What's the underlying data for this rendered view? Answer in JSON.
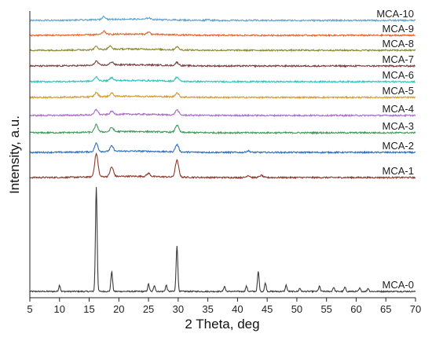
{
  "chart_data": {
    "type": "line",
    "title": "",
    "xlabel": "2 Theta, deg",
    "ylabel": "Intensity, a.u.",
    "xlim": [
      5,
      70
    ],
    "xticks": [
      5,
      10,
      15,
      20,
      25,
      30,
      35,
      40,
      45,
      50,
      55,
      60,
      65,
      70
    ],
    "y_tick_labels": false,
    "grid": false,
    "legend": "none (series labelled inline above each trace)",
    "series": [
      {
        "name": "MCA-0",
        "color": "#3a3a3a",
        "peaks": [
          [
            10.0,
            0.06
          ],
          [
            16.2,
            1.0
          ],
          [
            18.8,
            0.19
          ],
          [
            25.0,
            0.07
          ],
          [
            26.0,
            0.06
          ],
          [
            28.0,
            0.06
          ],
          [
            29.8,
            0.44
          ],
          [
            37.8,
            0.05
          ],
          [
            41.5,
            0.05
          ],
          [
            43.5,
            0.19
          ],
          [
            44.7,
            0.08
          ],
          [
            48.2,
            0.06
          ],
          [
            50.5,
            0.03
          ],
          [
            53.8,
            0.05
          ],
          [
            56.2,
            0.04
          ],
          [
            58.1,
            0.04
          ],
          [
            60.6,
            0.03
          ],
          [
            62.0,
            0.03
          ]
        ]
      },
      {
        "name": "MCA-1",
        "color": "#8b3a2e",
        "peaks": [
          [
            16.2,
            0.22
          ],
          [
            18.8,
            0.09
          ],
          [
            25.0,
            0.03
          ],
          [
            29.8,
            0.16
          ],
          [
            41.8,
            0.02
          ],
          [
            44.0,
            0.02
          ]
        ]
      },
      {
        "name": "MCA-2",
        "color": "#2d6ec2",
        "peaks": [
          [
            16.2,
            0.08
          ],
          [
            18.8,
            0.05
          ],
          [
            29.8,
            0.07
          ],
          [
            41.8,
            0.015
          ]
        ]
      },
      {
        "name": "MCA-3",
        "color": "#3f9a5a",
        "peaks": [
          [
            16.2,
            0.07
          ],
          [
            18.8,
            0.04
          ],
          [
            29.8,
            0.07
          ]
        ]
      },
      {
        "name": "MCA-4",
        "color": "#a96ac9",
        "peaks": [
          [
            16.2,
            0.05
          ],
          [
            18.8,
            0.03
          ],
          [
            29.8,
            0.05
          ]
        ]
      },
      {
        "name": "MCA-5",
        "color": "#d49a2c",
        "peaks": [
          [
            16.2,
            0.04
          ],
          [
            18.8,
            0.03
          ],
          [
            29.8,
            0.04
          ]
        ]
      },
      {
        "name": "MCA-6",
        "color": "#2fc6c0",
        "peaks": [
          [
            16.2,
            0.04
          ],
          [
            18.8,
            0.03
          ],
          [
            29.8,
            0.04
          ]
        ]
      },
      {
        "name": "MCA-7",
        "color": "#7a3e3e",
        "peaks": [
          [
            16.2,
            0.04
          ],
          [
            18.8,
            0.03
          ],
          [
            29.8,
            0.03
          ]
        ]
      },
      {
        "name": "MCA-8",
        "color": "#8a8a2a",
        "peaks": [
          [
            16.2,
            0.03
          ],
          [
            18.5,
            0.03
          ],
          [
            29.8,
            0.03
          ]
        ]
      },
      {
        "name": "MCA-9",
        "color": "#e8632b",
        "peaks": [
          [
            17.5,
            0.03
          ],
          [
            25.0,
            0.02
          ]
        ]
      },
      {
        "name": "MCA-10",
        "color": "#5ea3cc",
        "peaks": [
          [
            17.5,
            0.03
          ],
          [
            25.0,
            0.015
          ],
          [
            35.0,
            0.01
          ]
        ]
      }
    ]
  }
}
